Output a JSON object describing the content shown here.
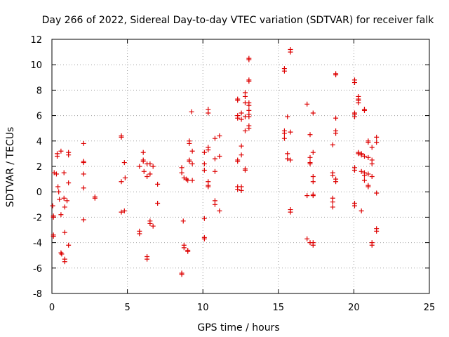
{
  "chart_data": {
    "type": "scatter",
    "title": "Day 266 of 2022, Sidereal Day-to-day VTEC variation (SDTVAR) for receiver falk",
    "xlabel": "GPS time / hours",
    "ylabel": "SDTVAR / TECUs",
    "xlim": [
      0,
      25
    ],
    "ylim": [
      -8,
      12
    ],
    "xticks": [
      "0",
      "5",
      "10",
      "15",
      "20",
      "25"
    ],
    "yticks": [
      "-8",
      "-6",
      "-4",
      "-2",
      "0",
      "2",
      "4",
      "6",
      "8",
      "10",
      "12"
    ],
    "grid": true,
    "marker": "+",
    "color": "#dd0000",
    "points": [
      [
        0.05,
        -1.1
      ],
      [
        0.1,
        -1.9
      ],
      [
        0.1,
        -2.0
      ],
      [
        0.1,
        -3.4
      ],
      [
        0.1,
        -3.5
      ],
      [
        0.15,
        1.5
      ],
      [
        0.3,
        1.4
      ],
      [
        0.35,
        3.0
      ],
      [
        0.35,
        2.8
      ],
      [
        0.4,
        0.4
      ],
      [
        0.45,
        0.0
      ],
      [
        0.5,
        -0.6
      ],
      [
        0.6,
        3.2
      ],
      [
        0.6,
        -1.8
      ],
      [
        0.6,
        -4.8
      ],
      [
        0.65,
        -4.9
      ],
      [
        0.8,
        1.5
      ],
      [
        0.8,
        -0.5
      ],
      [
        0.85,
        -1.2
      ],
      [
        0.85,
        -3.2
      ],
      [
        0.85,
        -5.3
      ],
      [
        0.85,
        -5.5
      ],
      [
        1.0,
        -0.7
      ],
      [
        1.1,
        3.1
      ],
      [
        1.1,
        2.9
      ],
      [
        1.1,
        0.7
      ],
      [
        1.1,
        -4.2
      ],
      [
        2.1,
        3.8
      ],
      [
        2.1,
        2.4
      ],
      [
        2.1,
        2.3
      ],
      [
        2.1,
        1.4
      ],
      [
        2.1,
        0.3
      ],
      [
        2.1,
        -2.2
      ],
      [
        2.85,
        -0.4
      ],
      [
        2.85,
        -0.5
      ],
      [
        4.6,
        4.4
      ],
      [
        4.6,
        4.3
      ],
      [
        4.6,
        0.8
      ],
      [
        4.6,
        -1.6
      ],
      [
        4.8,
        2.3
      ],
      [
        4.8,
        -1.5
      ],
      [
        4.85,
        1.1
      ],
      [
        5.8,
        2.0
      ],
      [
        5.8,
        -3.1
      ],
      [
        5.8,
        -3.3
      ],
      [
        6.05,
        3.1
      ],
      [
        6.05,
        2.5
      ],
      [
        6.05,
        2.4
      ],
      [
        6.1,
        1.6
      ],
      [
        6.3,
        2.2
      ],
      [
        6.3,
        1.2
      ],
      [
        6.3,
        -5.1
      ],
      [
        6.3,
        -5.3
      ],
      [
        6.5,
        2.2
      ],
      [
        6.5,
        1.4
      ],
      [
        6.5,
        -2.3
      ],
      [
        6.5,
        -2.5
      ],
      [
        6.7,
        2.0
      ],
      [
        6.7,
        -2.7
      ],
      [
        7.0,
        0.6
      ],
      [
        7.0,
        -0.9
      ],
      [
        8.6,
        1.9
      ],
      [
        8.6,
        1.5
      ],
      [
        8.6,
        -6.4
      ],
      [
        8.6,
        -6.5
      ],
      [
        8.7,
        -2.3
      ],
      [
        8.75,
        1.1
      ],
      [
        8.75,
        -4.2
      ],
      [
        8.75,
        -4.4
      ],
      [
        8.9,
        1.0
      ],
      [
        9.0,
        0.9
      ],
      [
        9.0,
        -4.6
      ],
      [
        9.0,
        -4.7
      ],
      [
        9.1,
        4.0
      ],
      [
        9.1,
        3.8
      ],
      [
        9.1,
        2.5
      ],
      [
        9.1,
        2.4
      ],
      [
        9.25,
        6.3
      ],
      [
        9.3,
        3.2
      ],
      [
        9.3,
        2.2
      ],
      [
        9.3,
        0.9
      ],
      [
        10.1,
        3.1
      ],
      [
        10.1,
        2.2
      ],
      [
        10.1,
        1.7
      ],
      [
        10.1,
        -2.1
      ],
      [
        10.1,
        -3.6
      ],
      [
        10.1,
        -3.7
      ],
      [
        10.35,
        6.5
      ],
      [
        10.35,
        6.2
      ],
      [
        10.35,
        3.5
      ],
      [
        10.35,
        3.3
      ],
      [
        10.35,
        0.8
      ],
      [
        10.35,
        0.5
      ],
      [
        10.35,
        0.4
      ],
      [
        10.8,
        4.2
      ],
      [
        10.8,
        2.6
      ],
      [
        10.8,
        1.6
      ],
      [
        10.8,
        -0.7
      ],
      [
        10.8,
        -1.0
      ],
      [
        11.1,
        4.4
      ],
      [
        11.1,
        2.8
      ],
      [
        11.1,
        -1.5
      ],
      [
        12.3,
        7.3
      ],
      [
        12.3,
        7.2
      ],
      [
        12.3,
        6.0
      ],
      [
        12.3,
        5.8
      ],
      [
        12.3,
        2.5
      ],
      [
        12.3,
        2.4
      ],
      [
        12.3,
        0.4
      ],
      [
        12.3,
        0.2
      ],
      [
        12.55,
        6.2
      ],
      [
        12.55,
        5.7
      ],
      [
        12.55,
        3.6
      ],
      [
        12.55,
        2.9
      ],
      [
        12.55,
        0.4
      ],
      [
        12.55,
        0.1
      ],
      [
        12.8,
        7.8
      ],
      [
        12.8,
        7.5
      ],
      [
        12.8,
        7.0
      ],
      [
        12.8,
        5.9
      ],
      [
        12.8,
        4.8
      ],
      [
        12.8,
        1.8
      ],
      [
        12.8,
        1.7
      ],
      [
        13.05,
        10.5
      ],
      [
        13.05,
        10.4
      ],
      [
        13.05,
        8.8
      ],
      [
        13.05,
        8.7
      ],
      [
        13.05,
        7.0
      ],
      [
        13.05,
        6.8
      ],
      [
        13.05,
        6.4
      ],
      [
        13.05,
        6.1
      ],
      [
        13.05,
        5.9
      ],
      [
        13.05,
        5.2
      ],
      [
        13.05,
        5.0
      ],
      [
        15.4,
        9.7
      ],
      [
        15.4,
        9.5
      ],
      [
        15.4,
        4.8
      ],
      [
        15.4,
        4.6
      ],
      [
        15.4,
        4.2
      ],
      [
        15.6,
        5.9
      ],
      [
        15.6,
        3.0
      ],
      [
        15.6,
        2.6
      ],
      [
        15.8,
        11.2
      ],
      [
        15.8,
        11.0
      ],
      [
        15.8,
        4.7
      ],
      [
        15.8,
        2.5
      ],
      [
        15.8,
        -1.4
      ],
      [
        15.8,
        -1.6
      ],
      [
        16.9,
        6.9
      ],
      [
        16.9,
        -0.3
      ],
      [
        16.9,
        -3.7
      ],
      [
        17.1,
        4.5
      ],
      [
        17.1,
        2.7
      ],
      [
        17.1,
        2.3
      ],
      [
        17.1,
        2.2
      ],
      [
        17.1,
        -4.0
      ],
      [
        17.3,
        6.2
      ],
      [
        17.3,
        3.1
      ],
      [
        17.3,
        1.2
      ],
      [
        17.3,
        0.8
      ],
      [
        17.3,
        -0.2
      ],
      [
        17.3,
        -0.3
      ],
      [
        17.3,
        -4.0
      ],
      [
        17.3,
        -4.2
      ],
      [
        18.6,
        3.7
      ],
      [
        18.6,
        1.5
      ],
      [
        18.6,
        1.3
      ],
      [
        18.6,
        -0.5
      ],
      [
        18.6,
        -0.8
      ],
      [
        18.6,
        -1.2
      ],
      [
        18.8,
        9.3
      ],
      [
        18.8,
        9.2
      ],
      [
        18.8,
        5.8
      ],
      [
        18.8,
        4.8
      ],
      [
        18.8,
        4.6
      ],
      [
        18.8,
        1.0
      ],
      [
        18.8,
        0.8
      ],
      [
        20.05,
        8.8
      ],
      [
        20.05,
        8.6
      ],
      [
        20.05,
        6.2
      ],
      [
        20.05,
        6.1
      ],
      [
        20.05,
        5.9
      ],
      [
        20.05,
        1.9
      ],
      [
        20.05,
        1.7
      ],
      [
        20.05,
        -0.9
      ],
      [
        20.05,
        -1.1
      ],
      [
        20.3,
        7.5
      ],
      [
        20.3,
        7.3
      ],
      [
        20.3,
        7.2
      ],
      [
        20.3,
        7.0
      ],
      [
        20.3,
        3.1
      ],
      [
        20.3,
        3.0
      ],
      [
        20.5,
        3.0
      ],
      [
        20.5,
        2.9
      ],
      [
        20.5,
        1.6
      ],
      [
        20.5,
        -1.5
      ],
      [
        20.7,
        6.5
      ],
      [
        20.7,
        6.4
      ],
      [
        20.7,
        2.8
      ],
      [
        20.7,
        1.5
      ],
      [
        20.7,
        1.3
      ],
      [
        20.7,
        0.9
      ],
      [
        20.95,
        4.0
      ],
      [
        20.95,
        3.9
      ],
      [
        20.95,
        2.7
      ],
      [
        20.95,
        1.4
      ],
      [
        20.95,
        0.5
      ],
      [
        20.95,
        0.4
      ],
      [
        21.2,
        3.5
      ],
      [
        21.2,
        2.5
      ],
      [
        21.2,
        2.2
      ],
      [
        21.2,
        1.2
      ],
      [
        21.2,
        -4.0
      ],
      [
        21.2,
        -4.2
      ],
      [
        21.5,
        4.3
      ],
      [
        21.5,
        3.9
      ],
      [
        21.5,
        -0.1
      ],
      [
        21.5,
        -2.9
      ],
      [
        21.5,
        -3.1
      ]
    ]
  }
}
